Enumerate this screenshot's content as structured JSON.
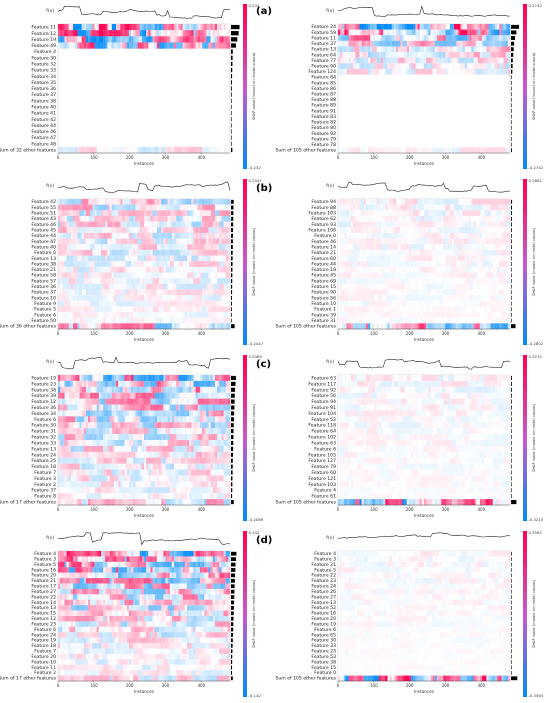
{
  "panel_labels": [
    "(a)",
    "(b)",
    "(c)",
    "(d)"
  ],
  "chart_data": [
    {
      "type": "heatmap",
      "panel": "(a)",
      "side": "left",
      "top_label": "f(x)",
      "rows": [
        "Feature 11",
        "Feature 12",
        "Feature 19",
        "Feature 49",
        "Feature 4",
        "Feature 30",
        "Feature 32",
        "Feature 33",
        "Feature 34",
        "Feature 35",
        "Feature 36",
        "Feature 37",
        "Feature 38",
        "Feature 40",
        "Feature 41",
        "Feature 42",
        "Feature 44",
        "Feature 46",
        "Feature 47",
        "Feature 48",
        "Sum of 32 other features"
      ],
      "xlabel": "Instances",
      "xticks": [
        0,
        100,
        200,
        300,
        400
      ],
      "n_instances": 480,
      "colorbar": {
        "label": "SHAP value (impact on model output)",
        "max": "0.232",
        "min": "-0.232"
      },
      "active_rows": 4,
      "importance": [
        0.95,
        0.85,
        0.7,
        0.55,
        0.2,
        0.18,
        0.16,
        0.14,
        0.12,
        0.1,
        0.09,
        0.08,
        0.07,
        0.06,
        0.06,
        0.05,
        0.05,
        0.04,
        0.04,
        0.03,
        0.15
      ]
    },
    {
      "type": "heatmap",
      "panel": "(a)",
      "side": "right",
      "top_label": "f(x)",
      "rows": [
        "Feature 24",
        "Feature 59",
        "Feature 11",
        "Feature 37",
        "Feature 13",
        "Feature 64",
        "Feature 77",
        "Feature 90",
        "Feature 124",
        "Feature 84",
        "Feature 85",
        "Feature 86",
        "Feature 87",
        "Feature 88",
        "Feature 89",
        "Feature 91",
        "Feature 83",
        "Feature 82",
        "Feature 80",
        "Feature 92",
        "Feature 79",
        "Feature 78",
        "Sum of 105 other features"
      ],
      "xlabel": "Instances",
      "xticks": [
        0,
        100,
        200,
        300,
        400
      ],
      "n_instances": 480,
      "colorbar": {
        "label": "SHAP value (impact on model output)",
        "max": "0.2742",
        "min": "-0.2742"
      },
      "active_rows": 9,
      "importance": [
        0.9,
        0.6,
        0.45,
        0.35,
        0.3,
        0.25,
        0.2,
        0.18,
        0.15,
        0.05,
        0.05,
        0.04,
        0.04,
        0.04,
        0.03,
        0.03,
        0.03,
        0.03,
        0.02,
        0.02,
        0.02,
        0.02,
        0.1
      ]
    },
    {
      "type": "heatmap",
      "panel": "(b)",
      "side": "left",
      "top_label": "f(x)",
      "rows": [
        "Feature 42",
        "Feature 55",
        "Feature 51",
        "Feature 43",
        "Feature 46",
        "Feature 45",
        "Feature 44",
        "Feature 47",
        "Feature 40",
        "Feature 0",
        "Feature 13",
        "Feature 38",
        "Feature 21",
        "Feature 58",
        "Feature 57",
        "Feature 36",
        "Feature 37",
        "Feature 10",
        "Feature 9",
        "Feature 5",
        "Feature 6",
        "Feature 50",
        "Sum of 36 other features"
      ],
      "xlabel": "Instances",
      "xticks": [
        0,
        100,
        200,
        300,
        400
      ],
      "n_instances": 480,
      "colorbar": {
        "label": "SHAP value (impact on model output)",
        "max": "0.2447",
        "min": "-0.2447"
      },
      "active_rows": 23,
      "importance": [
        0.3,
        0.28,
        0.26,
        0.25,
        0.24,
        0.23,
        0.22,
        0.21,
        0.2,
        0.19,
        0.18,
        0.17,
        0.16,
        0.15,
        0.14,
        0.13,
        0.12,
        0.11,
        0.1,
        0.09,
        0.08,
        0.07,
        0.4
      ]
    },
    {
      "type": "heatmap",
      "panel": "(b)",
      "side": "right",
      "top_label": "f(x)",
      "rows": [
        "Feature 94",
        "Feature 88",
        "Feature 103",
        "Feature 62",
        "Feature 93",
        "Feature 106",
        "Feature 0",
        "Feature 46",
        "Feature 14",
        "Feature 21",
        "Feature 60",
        "Feature 44",
        "Feature 18",
        "Feature 45",
        "Feature 69",
        "Feature 15",
        "Feature 90",
        "Feature 56",
        "Feature 10",
        "Feature 1",
        "Feature 39",
        "Feature 31",
        "Sum of 105 other features"
      ],
      "xlabel": "Instances",
      "xticks": [
        0,
        100,
        200,
        300,
        400
      ],
      "n_instances": 480,
      "colorbar": {
        "label": "SHAP value (impact on model output)",
        "max": "0.2802",
        "min": "-0.2802"
      },
      "active_rows": 23,
      "importance": [
        0.12,
        0.11,
        0.1,
        0.1,
        0.09,
        0.09,
        0.08,
        0.08,
        0.08,
        0.07,
        0.07,
        0.07,
        0.06,
        0.06,
        0.06,
        0.05,
        0.05,
        0.05,
        0.05,
        0.04,
        0.04,
        0.04,
        0.5
      ]
    },
    {
      "type": "heatmap",
      "panel": "(c)",
      "side": "left",
      "top_label": "f(x)",
      "rows": [
        "Feature 19",
        "Feature 23",
        "Feature 38",
        "Feature 39",
        "Feature 12",
        "Feature 36",
        "Feature 34",
        "Feature 6",
        "Feature 30",
        "Feature 31",
        "Feature 32",
        "Feature 33",
        "Feature 13",
        "Feature 24",
        "Feature 25",
        "Feature 18",
        "Feature 7",
        "Feature 3",
        "Feature 2",
        "Feature 37",
        "Feature 8",
        "Sum of 17 other features"
      ],
      "xlabel": "Instances",
      "xticks": [
        0,
        100,
        200,
        300,
        400
      ],
      "n_instances": 480,
      "colorbar": {
        "label": "SHAP value (impact on model output)",
        "max": "0.2089",
        "min": "-0.2089"
      },
      "active_rows": 22,
      "importance": [
        0.55,
        0.5,
        0.45,
        0.42,
        0.4,
        0.38,
        0.35,
        0.33,
        0.3,
        0.28,
        0.27,
        0.25,
        0.24,
        0.22,
        0.2,
        0.19,
        0.18,
        0.16,
        0.15,
        0.14,
        0.12,
        0.3
      ]
    },
    {
      "type": "heatmap",
      "panel": "(c)",
      "side": "right",
      "top_label": "f(x)",
      "rows": [
        "Feature 63",
        "Feature 117",
        "Feature 92",
        "Feature 56",
        "Feature 94",
        "Feature 91",
        "Feature 104",
        "Feature 52",
        "Feature 118",
        "Feature 64",
        "Feature 102",
        "Feature 63",
        "Feature 6",
        "Feature 105",
        "Feature 127",
        "Feature 79",
        "Feature 60",
        "Feature 121",
        "Feature 103",
        "Feature 4",
        "Feature 61",
        "Sum of 105 other features"
      ],
      "xlabel": "Instances",
      "xticks": [
        0,
        100,
        200,
        300,
        400
      ],
      "n_instances": 480,
      "colorbar": {
        "label": "SHAP value (impact on model output)",
        "max": "0.3215",
        "min": "-0.3215"
      },
      "active_rows": 22,
      "importance": [
        0.1,
        0.09,
        0.09,
        0.08,
        0.08,
        0.08,
        0.07,
        0.07,
        0.07,
        0.06,
        0.06,
        0.06,
        0.05,
        0.05,
        0.05,
        0.05,
        0.04,
        0.04,
        0.04,
        0.04,
        0.03,
        0.6
      ]
    },
    {
      "type": "heatmap",
      "panel": "(d)",
      "side": "left",
      "top_label": "f(x)",
      "rows": [
        "Feature 4",
        "Feature 3",
        "Feature 5",
        "Feature 16",
        "Feature 20",
        "Feature 21",
        "Feature 17",
        "Feature 27",
        "Feature 22",
        "Feature 14",
        "Feature 13",
        "Feature 15",
        "Feature 12",
        "Feature 23",
        "Feature 6",
        "Feature 24",
        "Feature 19",
        "Feature 18",
        "Feature 7",
        "Feature 20",
        "Feature 10",
        "Feature 11",
        "Feature 2",
        "Sum of 17 other features"
      ],
      "xlabel": "Instances",
      "xticks": [
        0,
        100,
        200,
        300,
        400
      ],
      "n_instances": 480,
      "colorbar": {
        "label": "SHAP value (impact on model output)",
        "max": "0.142",
        "min": "-0.142"
      },
      "active_rows": 24,
      "importance": [
        0.6,
        0.55,
        0.5,
        0.48,
        0.45,
        0.43,
        0.4,
        0.38,
        0.36,
        0.34,
        0.32,
        0.3,
        0.28,
        0.26,
        0.24,
        0.22,
        0.2,
        0.18,
        0.16,
        0.14,
        0.13,
        0.12,
        0.11,
        0.2
      ]
    },
    {
      "type": "heatmap",
      "panel": "(d)",
      "side": "right",
      "top_label": "f(x)",
      "rows": [
        "Feature 4",
        "Feature 3",
        "Feature 21",
        "Feature 5",
        "Feature 22",
        "Feature 23",
        "Feature 24",
        "Feature 26",
        "Feature 27",
        "Feature 13",
        "Feature 52",
        "Feature 16",
        "Feature 20",
        "Feature 19",
        "Feature 6",
        "Feature 65",
        "Feature 30",
        "Feature 33",
        "Feature 23",
        "Feature 53",
        "Feature 38",
        "Feature 15",
        "Feature 0",
        "Sum of 105 other features"
      ],
      "xlabel": "Instances",
      "xticks": [
        0,
        100,
        200,
        300,
        400
      ],
      "n_instances": 480,
      "colorbar": {
        "label": "SHAP value (impact on model output)",
        "max": "0.3563",
        "min": "-0.3563"
      },
      "active_rows": 24,
      "importance": [
        0.08,
        0.07,
        0.07,
        0.06,
        0.06,
        0.06,
        0.05,
        0.05,
        0.05,
        0.05,
        0.04,
        0.04,
        0.04,
        0.04,
        0.03,
        0.03,
        0.03,
        0.03,
        0.03,
        0.02,
        0.02,
        0.02,
        0.02,
        0.7
      ]
    }
  ]
}
